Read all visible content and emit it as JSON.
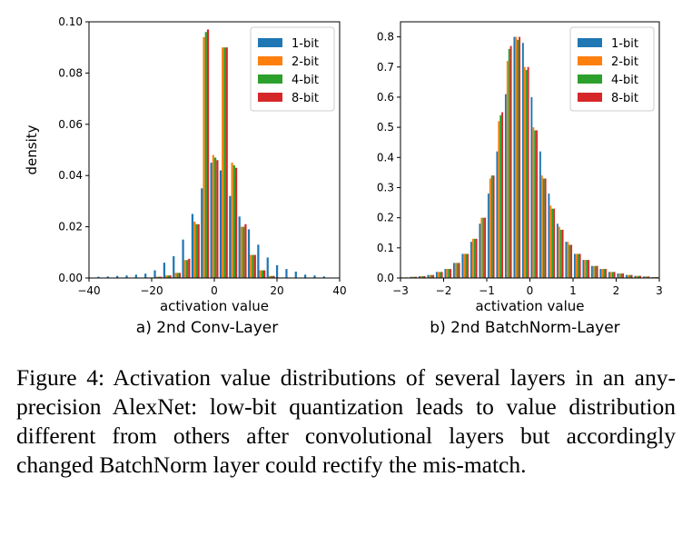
{
  "colors": {
    "1-bit": "#1f77b4",
    "2-bit": "#ff7f0e",
    "4-bit": "#2ca02c",
    "8-bit": "#d62728"
  },
  "chart_data": [
    {
      "type": "bar",
      "panel_label": "a) 2nd Conv-Layer",
      "xlabel": "activation value",
      "ylabel": "density",
      "xlim": [
        -40,
        40
      ],
      "ylim": [
        0,
        0.1
      ],
      "xticks": [
        -40,
        -20,
        0,
        20,
        40
      ],
      "yticks": [
        0.0,
        0.02,
        0.04,
        0.06,
        0.08,
        0.1
      ],
      "ytick_labels": [
        "0.00",
        "0.02",
        "0.04",
        "0.06",
        "0.08",
        "0.10"
      ],
      "legend_position": "top-right",
      "bin_width": 2.6,
      "x": [
        -36,
        -33,
        -30,
        -27,
        -24,
        -21,
        -18,
        -15,
        -12,
        -9,
        -6,
        -3,
        0,
        3,
        6,
        9,
        12,
        15,
        18,
        21,
        24,
        27,
        30,
        33,
        36
      ],
      "series": [
        {
          "name": "1-bit",
          "values": [
            0.0005,
            0.0006,
            0.0008,
            0.001,
            0.0013,
            0.0017,
            0.003,
            0.006,
            0.0085,
            0.015,
            0.025,
            0.035,
            0.045,
            0.042,
            0.032,
            0.024,
            0.019,
            0.013,
            0.008,
            0.005,
            0.0035,
            0.0025,
            0.0013,
            0.001,
            0.0006
          ]
        },
        {
          "name": "2-bit",
          "values": [
            0,
            0,
            0,
            0,
            0,
            0.0002,
            0.0005,
            0.001,
            0.002,
            0.007,
            0.022,
            0.094,
            0.048,
            0.09,
            0.045,
            0.02,
            0.009,
            0.003,
            0.0008,
            0.0002,
            0,
            0,
            0,
            0,
            0
          ]
        },
        {
          "name": "4-bit",
          "values": [
            0,
            0,
            0,
            0,
            0,
            0.0002,
            0.0005,
            0.001,
            0.002,
            0.007,
            0.021,
            0.096,
            0.047,
            0.09,
            0.044,
            0.02,
            0.009,
            0.003,
            0.0008,
            0.0002,
            0,
            0,
            0,
            0,
            0
          ]
        },
        {
          "name": "8-bit",
          "values": [
            0,
            0,
            0,
            0,
            0,
            0.0002,
            0.0005,
            0.001,
            0.002,
            0.0075,
            0.021,
            0.097,
            0.046,
            0.09,
            0.043,
            0.021,
            0.009,
            0.003,
            0.0008,
            0.0002,
            0,
            0,
            0,
            0,
            0
          ]
        }
      ]
    },
    {
      "type": "bar",
      "panel_label": "b) 2nd BatchNorm-Layer",
      "xlabel": "activation value",
      "ylabel": "",
      "xlim": [
        -3,
        3
      ],
      "ylim": [
        0,
        0.85
      ],
      "xticks": [
        -3,
        -2,
        -1,
        0,
        1,
        2,
        3
      ],
      "yticks": [
        0.0,
        0.1,
        0.2,
        0.3,
        0.4,
        0.5,
        0.6,
        0.7,
        0.8
      ],
      "ytick_labels": [
        "0.0",
        "0.1",
        "0.2",
        "0.3",
        "0.4",
        "0.5",
        "0.6",
        "0.7",
        "0.8"
      ],
      "legend_position": "top-right",
      "bin_width": 0.16,
      "x": [
        -2.9,
        -2.7,
        -2.5,
        -2.3,
        -2.1,
        -1.9,
        -1.7,
        -1.5,
        -1.3,
        -1.1,
        -0.9,
        -0.7,
        -0.5,
        -0.3,
        -0.1,
        0.1,
        0.3,
        0.5,
        0.7,
        0.9,
        1.1,
        1.3,
        1.5,
        1.7,
        1.9,
        2.1,
        2.3,
        2.5,
        2.7,
        2.9
      ],
      "series": [
        {
          "name": "1-bit",
          "values": [
            0.002,
            0.004,
            0.006,
            0.01,
            0.02,
            0.03,
            0.05,
            0.08,
            0.12,
            0.18,
            0.28,
            0.42,
            0.61,
            0.8,
            0.78,
            0.6,
            0.42,
            0.28,
            0.18,
            0.12,
            0.08,
            0.06,
            0.04,
            0.03,
            0.02,
            0.015,
            0.01,
            0.007,
            0.005,
            0.003
          ]
        },
        {
          "name": "2-bit",
          "values": [
            0.002,
            0.004,
            0.006,
            0.01,
            0.02,
            0.03,
            0.05,
            0.08,
            0.13,
            0.2,
            0.33,
            0.52,
            0.72,
            0.8,
            0.7,
            0.5,
            0.34,
            0.24,
            0.17,
            0.12,
            0.08,
            0.06,
            0.04,
            0.03,
            0.02,
            0.015,
            0.01,
            0.007,
            0.005,
            0.003
          ]
        },
        {
          "name": "4-bit",
          "values": [
            0.002,
            0.004,
            0.006,
            0.01,
            0.02,
            0.03,
            0.05,
            0.08,
            0.13,
            0.2,
            0.34,
            0.54,
            0.76,
            0.79,
            0.69,
            0.49,
            0.33,
            0.23,
            0.16,
            0.11,
            0.08,
            0.06,
            0.04,
            0.03,
            0.02,
            0.015,
            0.01,
            0.007,
            0.005,
            0.003
          ]
        },
        {
          "name": "8-bit",
          "values": [
            0.002,
            0.004,
            0.006,
            0.01,
            0.02,
            0.03,
            0.05,
            0.08,
            0.13,
            0.2,
            0.34,
            0.55,
            0.77,
            0.8,
            0.7,
            0.49,
            0.33,
            0.23,
            0.16,
            0.11,
            0.08,
            0.06,
            0.04,
            0.03,
            0.02,
            0.015,
            0.01,
            0.007,
            0.005,
            0.003
          ]
        }
      ]
    }
  ],
  "caption": "Figure 4: Activation value distributions of several layers in an any-precision AlexNet: low-bit quantization leads to value distribution different from others after convolutional layers but accordingly changed BatchNorm layer could rectify the mis-match."
}
